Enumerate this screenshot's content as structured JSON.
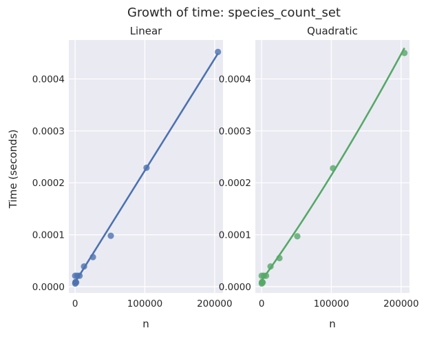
{
  "figure": {
    "title": "Growth of time: species_count_set",
    "ylabel": "Time (seconds)"
  },
  "chart_data": [
    {
      "type": "scatter",
      "title": "Linear",
      "xlabel": "n",
      "ylabel": "Time (seconds)",
      "xlim": [
        -9000,
        212000
      ],
      "ylim": [
        -1.2e-05,
        0.000475
      ],
      "xticks": [
        0,
        100000,
        200000
      ],
      "xtick_labels": [
        "0",
        "100000",
        "200000"
      ],
      "yticks": [
        0.0,
        0.0001,
        0.0002,
        0.0003,
        0.0004
      ],
      "ytick_labels": [
        "0.0000",
        "0.0001",
        "0.0002",
        "0.0003",
        "0.0004"
      ],
      "grid": true,
      "series": [
        {
          "color": "#4c72b0",
          "x": [
            100,
            200,
            400,
            800,
            1600,
            3200,
            6400,
            12800,
            25600,
            51200,
            102400,
            204800
          ],
          "y": [
            2.1e-05,
            6e-06,
            8e-06,
            9e-06,
            8e-06,
            2.1e-05,
            2.1e-05,
            3.9e-05,
            5.7e-05,
            9.8e-05,
            0.000229,
            0.000452
          ]
        }
      ],
      "fit": {
        "kind": "linear",
        "color": "#4c72b0",
        "x_range": [
          0,
          204800
        ],
        "y_range": [
          8.5e-06,
          0.000449
        ]
      }
    },
    {
      "type": "scatter",
      "title": "Quadratic",
      "xlabel": "n",
      "ylabel": "",
      "xlim": [
        -9000,
        212000
      ],
      "ylim": [
        -1.2e-05,
        0.000475
      ],
      "xticks": [
        0,
        100000,
        200000
      ],
      "xtick_labels": [
        "0",
        "100000",
        "200000"
      ],
      "yticks": [
        0.0,
        0.0001,
        0.0002,
        0.0003,
        0.0004
      ],
      "ytick_labels": [
        "0.0000",
        "0.0001",
        "0.0002",
        "0.0003",
        "0.0004"
      ],
      "grid": true,
      "series": [
        {
          "color": "#55a868",
          "x": [
            100,
            200,
            400,
            800,
            1600,
            3200,
            6400,
            12800,
            25600,
            51200,
            102400,
            204800
          ],
          "y": [
            2.1e-05,
            6e-06,
            8e-06,
            9e-06,
            8e-06,
            2.1e-05,
            2.1e-05,
            3.9e-05,
            5.5e-05,
            9.7e-05,
            0.000228,
            0.00045
          ]
        }
      ],
      "fit": {
        "kind": "quadratic",
        "color": "#55a868",
        "x_range": [
          0,
          204800
        ],
        "coeffs": [
          1.5e-15,
          1.88e-09,
          1.18e-05
        ]
      }
    }
  ]
}
